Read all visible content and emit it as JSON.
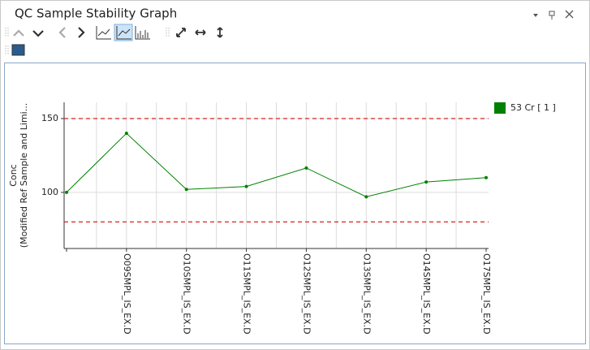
{
  "panel": {
    "title": "QC Sample Stability Graph"
  },
  "chart_data": {
    "type": "line",
    "ylabel": [
      "Conc",
      "(Modified Ref Sample and Limi..."
    ],
    "categories": [
      null,
      "O09SMPL_IS_EX.D",
      "O10SMPL_IS_EX.D",
      "O11SMPL_IS_EX.D",
      "O12SMPL_IS_EX.D",
      "O13SMPL_IS_EX.D",
      "O14SMPL_IS_EX.D",
      "O17SMPL_IS_EX.D"
    ],
    "series": [
      {
        "name": "53 Cr [ 1 ]",
        "color": "#008000",
        "values": [
          100,
          140,
          102,
          104,
          116.5,
          97,
          107,
          110
        ]
      }
    ],
    "reference_lines": [
      {
        "value": 150,
        "color": "#d62020"
      },
      {
        "value": 80,
        "color": "#d62020"
      }
    ],
    "ylim": [
      62,
      161
    ],
    "yticks": [
      100,
      150
    ],
    "grid": true,
    "legend": "right"
  }
}
